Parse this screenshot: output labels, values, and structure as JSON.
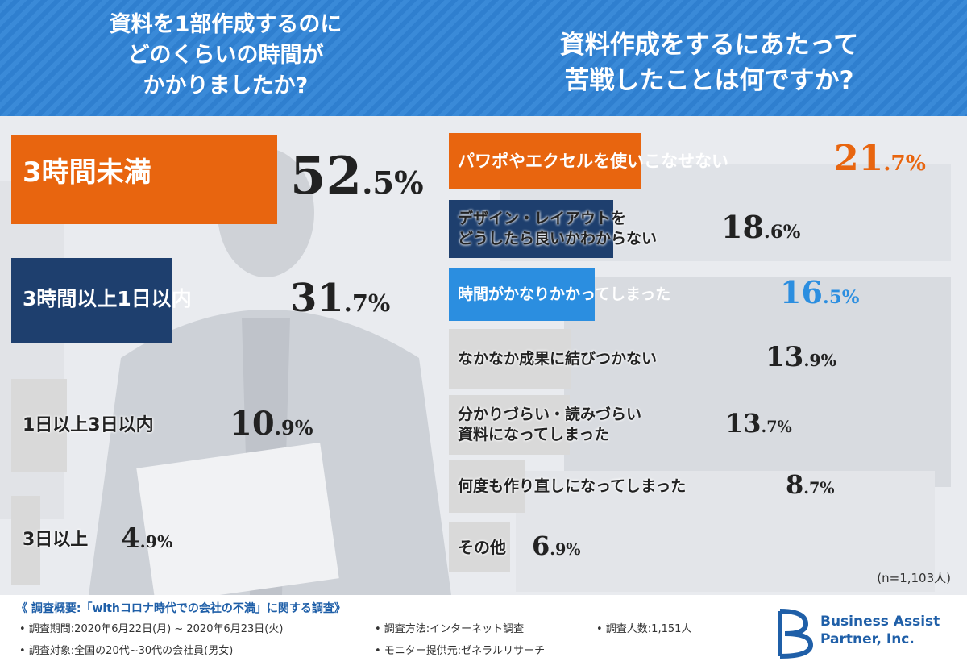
{
  "header": {
    "question_left": "資料を1部作成するのに\nどのくらいの時間が\nかかりましたか?",
    "question_right": "資料作成をするにあたって\n苦戦したことは何ですか?"
  },
  "chart_data": [
    {
      "type": "bar",
      "title": "資料を1部作成するのにどのくらいの時間がかかりましたか?",
      "categories": [
        "3時間未満",
        "3時間以上1日以内",
        "1日以上3日以内",
        "3日以上"
      ],
      "values": [
        52.5,
        31.7,
        10.9,
        4.9
      ],
      "unit": "%",
      "colors": [
        "#e8650f",
        "#1e3f6e",
        "#d9d9d9",
        "#d9d9d9"
      ]
    },
    {
      "type": "bar",
      "title": "資料作成をするにあたって苦戦したことは何ですか?",
      "categories": [
        "パワポやエクセルを使いこなせない",
        "デザイン・レイアウトを\nどうしたら良いかわからない",
        "時間がかなりかかってしまった",
        "なかなか成果に結びつかない",
        "分かりづらい・読みづらい\n資料になってしまった",
        "何度も作り直しになってしまった",
        "その他"
      ],
      "values": [
        21.7,
        18.6,
        16.5,
        13.9,
        13.7,
        8.7,
        6.9
      ],
      "unit": "%",
      "colors": [
        "#e8650f",
        "#1e3f6e",
        "#2b8ee0",
        "#d9d9d9",
        "#d9d9d9",
        "#d9d9d9",
        "#d9d9d9"
      ]
    }
  ],
  "sample_note": "(n=1,103人)",
  "footer": {
    "survey_title": "《 調査概要:「withコロナ時代での会社の不満」に関する調査》",
    "period": "• 調査期間:2020年6月22日(月) ~ 2020年6月23日(火)",
    "method": "• 調査方法:インターネット調査",
    "count": "• 調査人数:1,151人",
    "target": "• 調査対象:全国の20代~30代の会社員(男女)",
    "provider": "• モニター提供元:ゼネラルリサーチ"
  },
  "company": "Business Assist\nPartner, Inc."
}
